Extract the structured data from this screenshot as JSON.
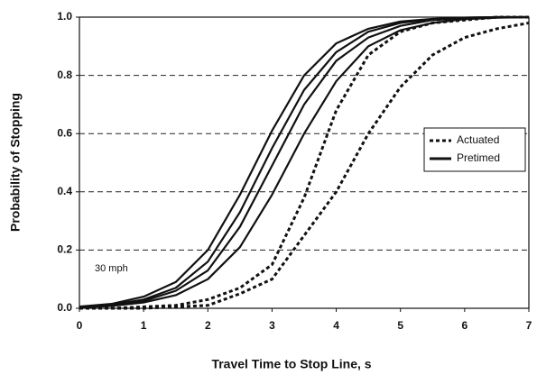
{
  "chart_data": {
    "type": "line",
    "x_label": "Travel Time to Stop Line, s",
    "y_label": "Probability of Stopping",
    "annotation": "30 mph",
    "x": [
      0,
      0.5,
      1,
      1.5,
      2,
      2.5,
      3,
      3.5,
      4,
      4.5,
      5,
      5.5,
      6,
      6.5,
      7
    ],
    "series": [
      {
        "name": "Actuated",
        "color": "#111111",
        "style": "dashed",
        "values": [
          0,
          0,
          0.005,
          0.01,
          0.03,
          0.07,
          0.15,
          0.38,
          0.68,
          0.87,
          0.95,
          0.98,
          0.99,
          1.0,
          1.0
        ]
      },
      {
        "name": "Actuated",
        "color": "#111111",
        "style": "dashed",
        "values": [
          0,
          0,
          0,
          0.005,
          0.01,
          0.05,
          0.1,
          0.25,
          0.4,
          0.6,
          0.76,
          0.87,
          0.93,
          0.96,
          0.98
        ]
      },
      {
        "name": "Pretimed",
        "color": "#111111",
        "style": "solid",
        "values": [
          0.006,
          0.015,
          0.04,
          0.09,
          0.2,
          0.39,
          0.61,
          0.8,
          0.91,
          0.96,
          0.985,
          0.994,
          0.998,
          1.0,
          1.0
        ]
      },
      {
        "name": "Pretimed",
        "color": "#111111",
        "style": "solid",
        "values": [
          0.005,
          0.012,
          0.03,
          0.07,
          0.16,
          0.33,
          0.55,
          0.75,
          0.88,
          0.95,
          0.98,
          0.993,
          0.998,
          1.0,
          1.0
        ]
      },
      {
        "name": "Pretimed",
        "color": "#111111",
        "style": "solid",
        "values": [
          0.004,
          0.01,
          0.025,
          0.06,
          0.13,
          0.28,
          0.49,
          0.7,
          0.85,
          0.93,
          0.97,
          0.99,
          0.996,
          0.999,
          1.0
        ]
      },
      {
        "name": "Pretimed",
        "color": "#111111",
        "style": "solid",
        "values": [
          0.003,
          0.008,
          0.02,
          0.045,
          0.1,
          0.21,
          0.39,
          0.6,
          0.78,
          0.9,
          0.955,
          0.98,
          0.993,
          0.998,
          1.0
        ]
      }
    ],
    "xlim": [
      0,
      7
    ],
    "xticks": [
      0,
      1,
      2,
      3,
      4,
      5,
      6,
      7
    ],
    "ylim": [
      0,
      1
    ],
    "yticks": [
      {
        "value": 0,
        "label": "0.0"
      },
      0.2,
      0.4,
      0.6,
      0.8,
      {
        "value": 1,
        "label": "1.0"
      }
    ],
    "grid": true,
    "legend": "right"
  }
}
